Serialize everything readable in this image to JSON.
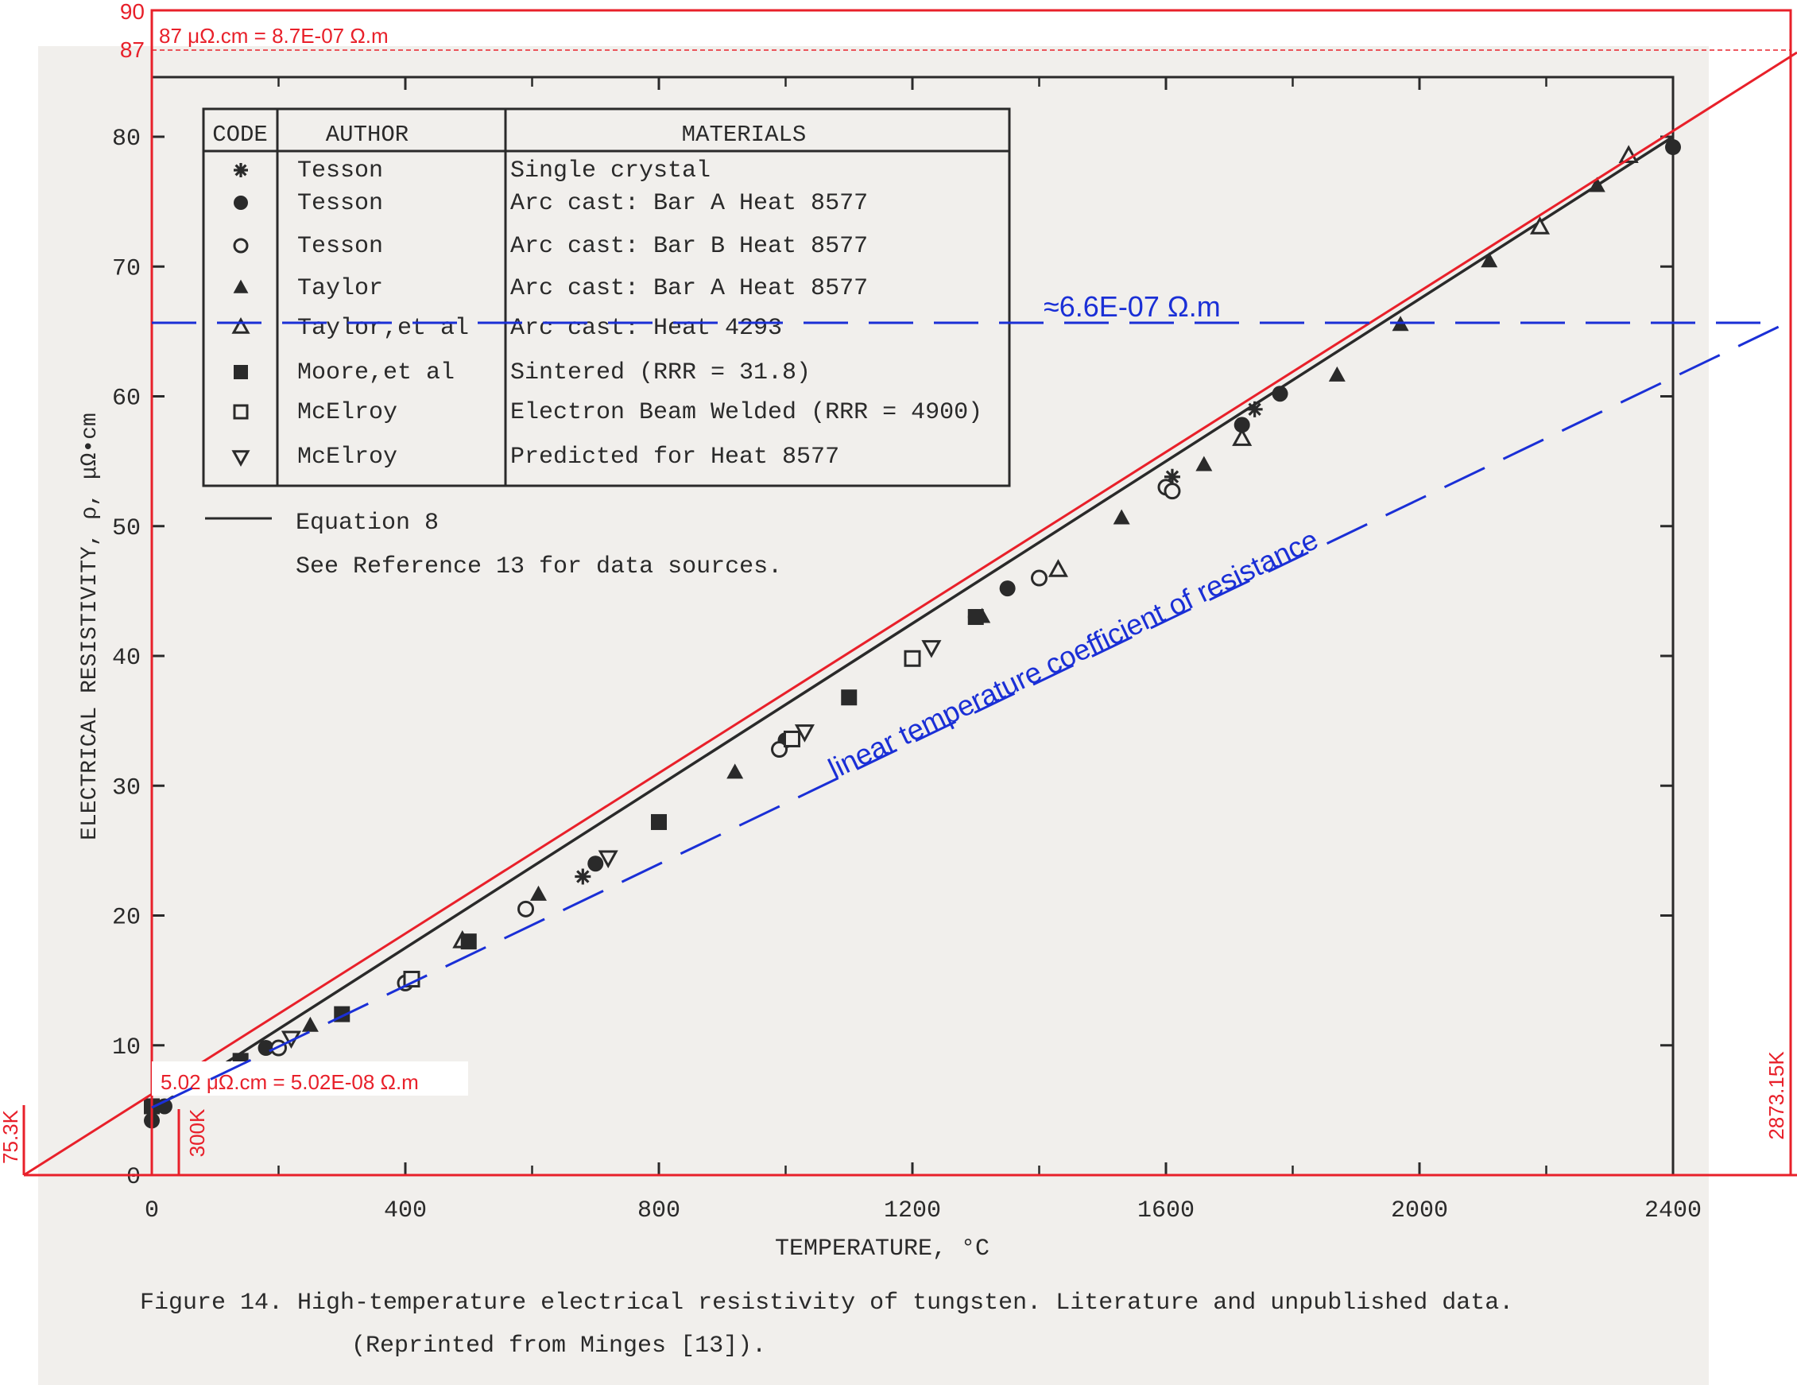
{
  "caption": {
    "line1": "Figure 14.  High-temperature electrical resistivity of tungsten. Literature and unpublished data.",
    "line2": "(Reprinted from Minges [13])."
  },
  "legend": {
    "headers": [
      "CODE",
      "AUTHOR",
      "MATERIALS"
    ],
    "rows": [
      {
        "symbol": "asterisk",
        "author": "Tesson",
        "material": "Single crystal"
      },
      {
        "symbol": "filled-circle",
        "author": "Tesson",
        "material": "Arc cast: Bar A Heat 8577"
      },
      {
        "symbol": "open-circle",
        "author": "Tesson",
        "material": "Arc cast: Bar B Heat 8577"
      },
      {
        "symbol": "filled-triangle",
        "author": "Taylor",
        "material": "Arc cast: Bar A Heat 8577"
      },
      {
        "symbol": "open-triangle",
        "author": "Taylor,et al",
        "material": "Arc cast: Heat 4293"
      },
      {
        "symbol": "filled-square",
        "author": "Moore,et al",
        "material": "Sintered (RRR = 31.8)"
      },
      {
        "symbol": "open-square",
        "author": "McElroy",
        "material": "Electron Beam  Welded (RRR = 4900)"
      },
      {
        "symbol": "open-inverted-triangle",
        "author": "McElroy",
        "material": "Predicted for Heat 8577"
      }
    ],
    "equation_label": "Equation 8",
    "note": "See Reference 13 for data sources."
  },
  "annotations": {
    "top_value": "87 μΩ.cm = 8.7E-07 Ω.m",
    "tick_90": "90",
    "tick_87": "87",
    "mid_value": "≈6.6E-07 Ω.m",
    "low_value": "5.02 μΩ.cm = 5.02E-08 Ω.m",
    "k_75": "75.3K",
    "k_300": "300K",
    "k_2873": "2873.15K",
    "diagonal_label": "linear temperature coefficient of resistance"
  },
  "colors": {
    "annotation_red": "#e8202a",
    "annotation_blue": "#1a2fd6",
    "ink": "#2a2a2a",
    "paper": "#f1efec"
  },
  "chart_data": {
    "type": "scatter",
    "title": "",
    "xlabel": "TEMPERATURE, °C",
    "ylabel": "ELECTRICAL RESISTIVITY, ρ, μΩ•cm",
    "xlim": [
      0,
      2400
    ],
    "ylim": [
      0,
      80
    ],
    "xticks": [
      0,
      400,
      800,
      1200,
      1600,
      2000,
      2400
    ],
    "yticks": [
      0,
      10,
      20,
      30,
      40,
      50,
      60,
      70,
      80
    ],
    "grid": false,
    "legend_position": "top-left",
    "fit_line": {
      "name": "Equation 8",
      "x": [
        0,
        2400
      ],
      "y": [
        5.0,
        80.0
      ]
    },
    "series": [
      {
        "name": "Tesson",
        "symbol": "asterisk",
        "x": [
          680,
          1610,
          1740
        ],
        "y": [
          23.0,
          53.8,
          59.0
        ]
      },
      {
        "name": "Tesson",
        "symbol": "filled-circle",
        "x": [
          0,
          20,
          180,
          700,
          1000,
          1350,
          1300,
          1720,
          1780,
          2400
        ],
        "y": [
          4.2,
          5.3,
          9.8,
          24.0,
          33.5,
          45.2,
          43.0,
          57.8,
          60.2,
          79.2
        ]
      },
      {
        "name": "Tesson",
        "symbol": "open-circle",
        "x": [
          200,
          400,
          590,
          990,
          1400,
          1600,
          1610
        ],
        "y": [
          9.8,
          14.8,
          20.5,
          32.8,
          46.0,
          53.0,
          52.7
        ]
      },
      {
        "name": "Taylor",
        "symbol": "filled-triangle",
        "x": [
          250,
          610,
          920,
          1310,
          1530,
          1660,
          1870,
          1970,
          2110,
          2280
        ],
        "y": [
          11.5,
          21.6,
          31.0,
          43.0,
          50.6,
          54.7,
          61.6,
          65.5,
          70.4,
          76.2
        ]
      },
      {
        "name": "Taylor,et al",
        "symbol": "open-triangle",
        "x": [
          490,
          1430,
          1720,
          2190,
          2330
        ],
        "y": [
          18.0,
          46.6,
          56.7,
          73.0,
          78.5
        ]
      },
      {
        "name": "Moore,et al",
        "symbol": "filled-square",
        "x": [
          0,
          140,
          300,
          500,
          800,
          1100,
          1300
        ],
        "y": [
          5.3,
          8.8,
          12.4,
          18.0,
          27.2,
          36.8,
          43.0
        ]
      },
      {
        "name": "McElroy",
        "symbol": "open-square",
        "x": [
          410,
          1010,
          1200
        ],
        "y": [
          15.1,
          33.6,
          39.8
        ]
      },
      {
        "name": "McElroy",
        "symbol": "open-inverted-triangle",
        "x": [
          220,
          720,
          1030,
          1230
        ],
        "y": [
          10.6,
          24.5,
          34.2,
          40.7
        ]
      }
    ]
  }
}
